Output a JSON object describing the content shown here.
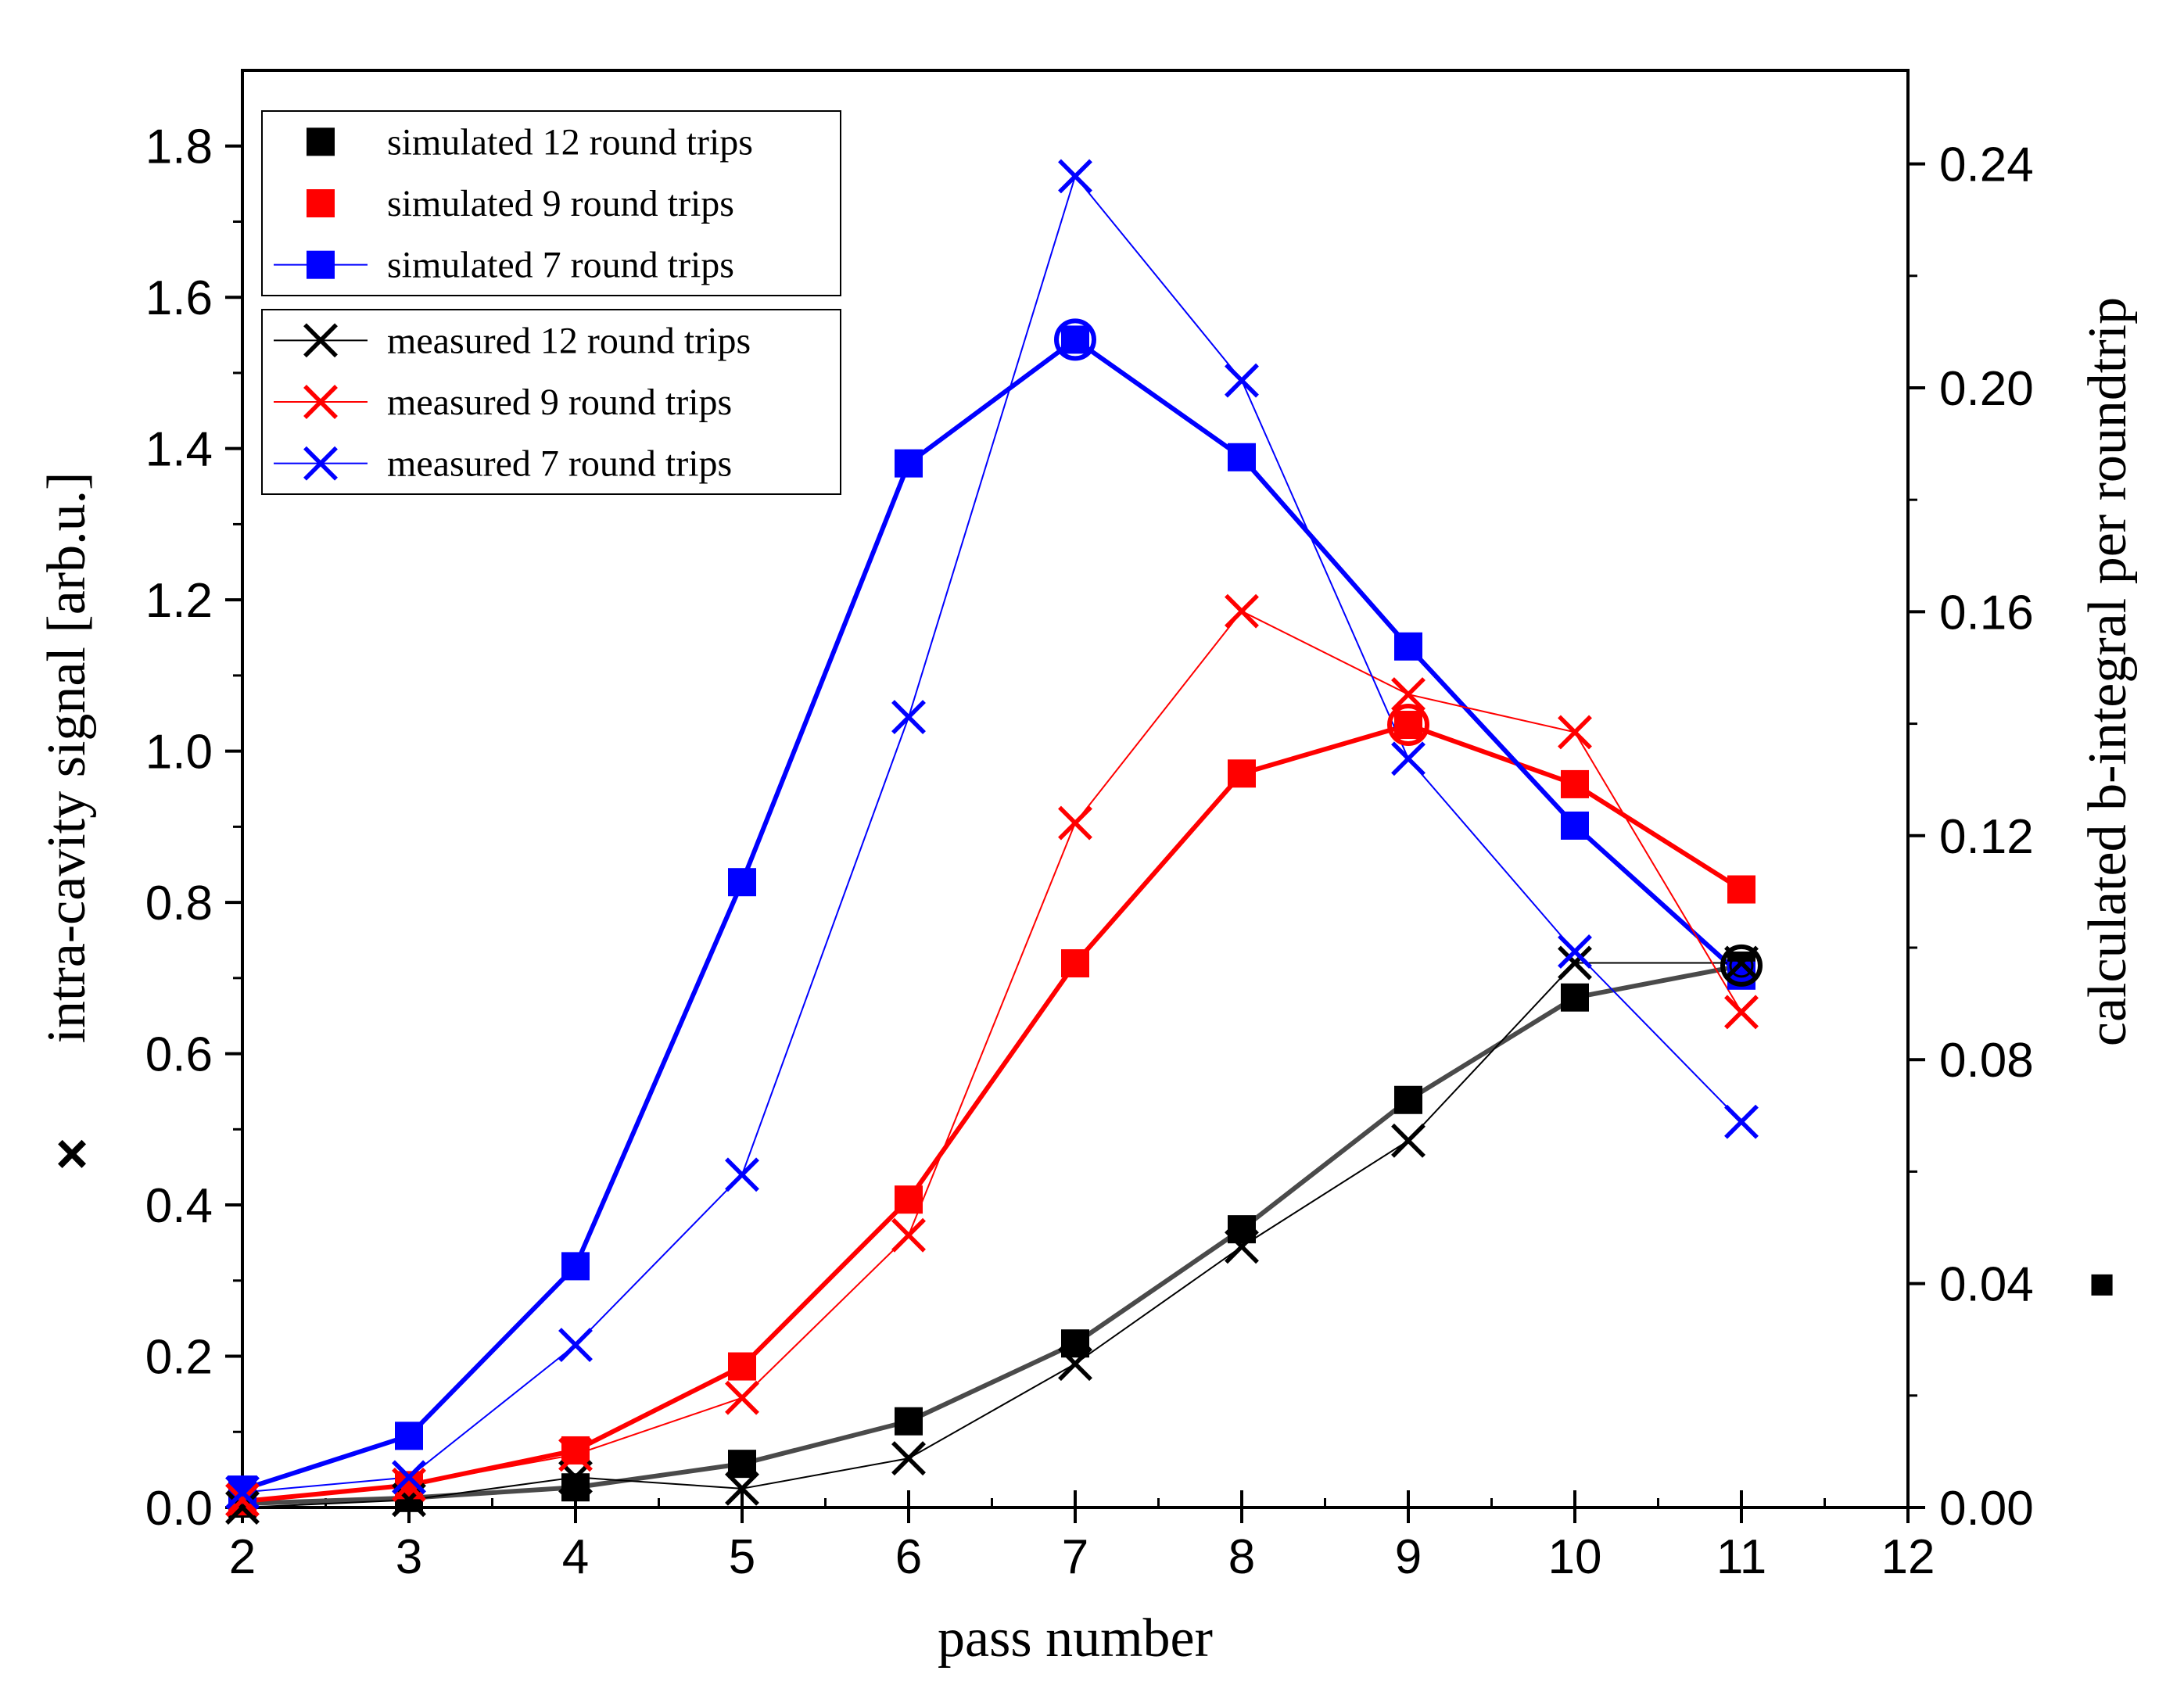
{
  "chart_data": {
    "type": "line",
    "title": "",
    "xlabel": "pass number",
    "ylabel": "intra-cavity signal [arb.u.]",
    "ylabel_right": "calculated b-integral per roundtrip",
    "ylabel_marker": "×",
    "ylabel_right_marker": "■",
    "xlim": [
      2,
      12
    ],
    "ylim": [
      0,
      1.9
    ],
    "ylim_right": [
      0,
      0.2567
    ],
    "x_ticks": [
      "2",
      "3",
      "4",
      "5",
      "6",
      "7",
      "8",
      "9",
      "10",
      "11",
      "12"
    ],
    "y_ticks": [
      "0.0",
      "0.2",
      "0.4",
      "0.6",
      "0.8",
      "1.0",
      "1.2",
      "1.4",
      "1.6",
      "1.8"
    ],
    "y_ticks_right": [
      "0.00",
      "0.04",
      "0.08",
      "0.12",
      "0.16",
      "0.20",
      "0.24"
    ],
    "colors": {
      "black": "#000000",
      "gray": "#4a4a4a",
      "red": "#ff0000",
      "blue": "#0000ff"
    },
    "series": [
      {
        "name": "simulated 12 round trips",
        "kind": "simulated",
        "color": "#000000",
        "line_color": "#4a4a4a",
        "x": [
          2,
          3,
          4,
          5,
          6,
          7,
          8,
          9,
          10,
          11
        ],
        "values": [
          0.0007,
          0.0017,
          0.0036,
          0.0078,
          0.0154,
          0.0293,
          0.0497,
          0.0728,
          0.0911,
          0.0968
        ]
      },
      {
        "name": "simulated 9 round trips",
        "kind": "simulated",
        "color": "#ff0000",
        "line_color": "#ff0000",
        "x": [
          2,
          3,
          4,
          5,
          6,
          7,
          8,
          9,
          10,
          11
        ],
        "values": [
          0.0011,
          0.004,
          0.0102,
          0.0252,
          0.055,
          0.0972,
          0.1311,
          0.1398,
          0.1292,
          0.1104
        ]
      },
      {
        "name": "simulated 7 round trips",
        "kind": "simulated",
        "color": "#0000ff",
        "line_color": "#0000ff",
        "x": [
          2,
          3,
          4,
          5,
          6,
          7,
          8,
          9,
          10,
          11
        ],
        "values": [
          0.0032,
          0.0128,
          0.0431,
          0.1117,
          0.1865,
          0.2086,
          0.1876,
          0.1538,
          0.1218,
          0.095
        ]
      },
      {
        "name": "measured 12 round trips",
        "kind": "measured",
        "color": "#000000",
        "x": [
          2,
          3,
          4,
          5,
          6,
          7,
          8,
          9,
          10,
          11
        ],
        "values": [
          0.0,
          0.01,
          0.04,
          0.025,
          0.065,
          0.19,
          0.345,
          0.485,
          0.72,
          0.72
        ]
      },
      {
        "name": "measured 9 round trips",
        "kind": "measured",
        "color": "#ff0000",
        "x": [
          2,
          3,
          4,
          5,
          6,
          7,
          8,
          9,
          10,
          11
        ],
        "values": [
          0.01,
          0.03,
          0.07,
          0.145,
          0.36,
          0.905,
          1.185,
          1.075,
          1.025,
          0.655
        ]
      },
      {
        "name": "measured 7 round trips",
        "kind": "measured",
        "color": "#0000ff",
        "x": [
          2,
          3,
          4,
          5,
          6,
          7,
          8,
          9,
          10,
          11
        ],
        "values": [
          0.02,
          0.04,
          0.215,
          0.44,
          1.045,
          1.76,
          1.49,
          0.99,
          0.735,
          0.51
        ]
      }
    ],
    "highlight_circles": [
      {
        "series": "simulated 7 round trips",
        "x": 7,
        "value": 0.2086,
        "color": "#0000ff"
      },
      {
        "series": "simulated 9 round trips",
        "x": 9,
        "value": 0.1398,
        "color": "#ff0000"
      },
      {
        "series": "simulated 12 round trips",
        "x": 11,
        "value": 0.0968,
        "color": "#000000"
      }
    ],
    "legend": {
      "placement": "top-left",
      "simulated": [
        "simulated 12 round trips",
        "simulated 9 round trips",
        "simulated 7 round trips"
      ],
      "measured": [
        "measured 12 round trips",
        "measured 9 round trips",
        "measured 7 round trips"
      ]
    }
  }
}
